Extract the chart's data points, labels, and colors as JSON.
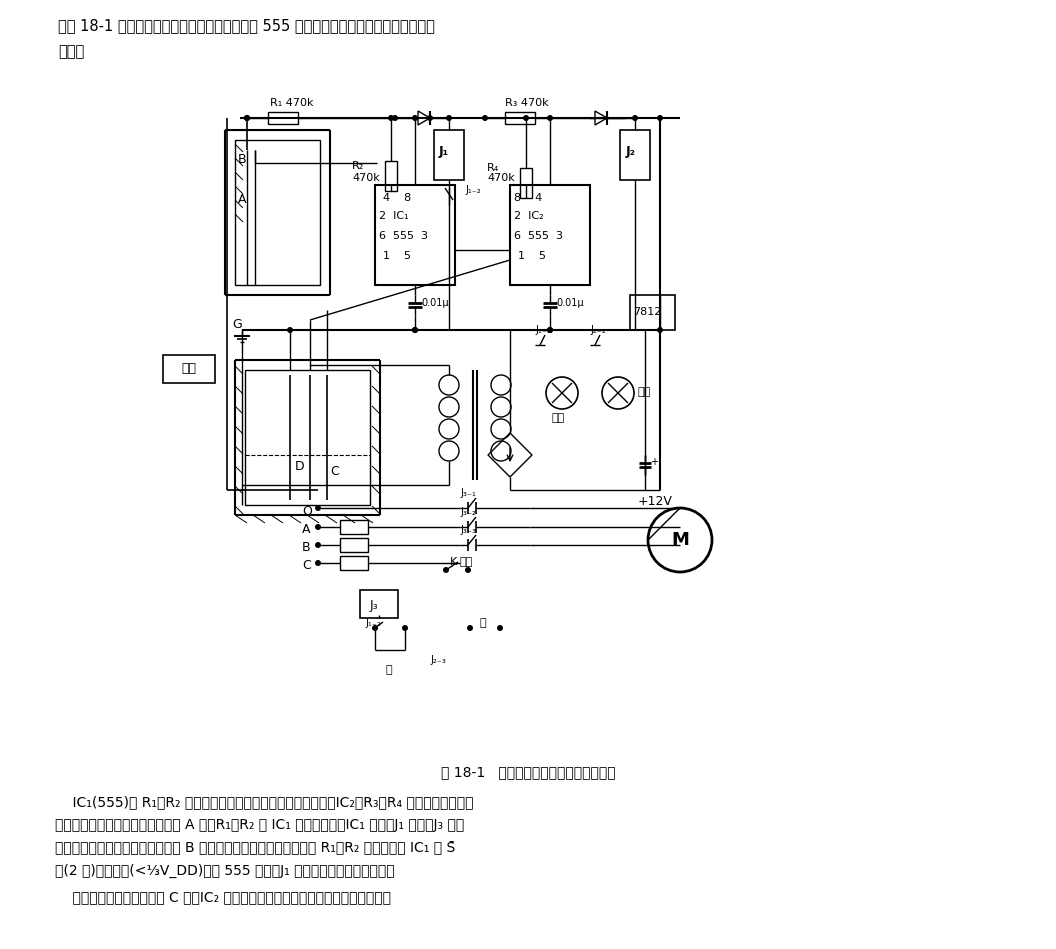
{
  "bg_color": "#ffffff",
  "line_color": "#000000",
  "top_text1": "如图 18-1 所示，控制电路由水位探测头和两片 555 接成的双稳触发电路及继电控制部分",
  "top_text2": "组成。",
  "caption": "图 18-1   楼顶水箱自动上水控制装置电路",
  "body1": "    IC₁(555)和 R₁、R₂ 及水位探极组成楼顶水箱用双稳态电路，IC₂、R₃、R₄ 组成楼下水池用双",
  "body2": "稳态电路。当楼顶水箱的水位低于 A 时，R₁、R₂ 为 IC₁ 提供高电平，IC₁ 复位，J₁ 吸合，J₃ 也吸",
  "body3": "合，水泵得电抽水；当水位上升至 B 点时，由于探极对地电阻低，与 R₁、R₂ 分压后，使 IC₁ 的 S̄",
  "body4": "端(2 脚)呈低电平(<⅓V_DD)，使 555 置位，J₁ 释放，水泵断电停止抽水。",
  "body5": "    楼下水池的水位不应低于 C 点。IC₂ 控制器情况与楼顶水箱的水位控制情况类似。"
}
